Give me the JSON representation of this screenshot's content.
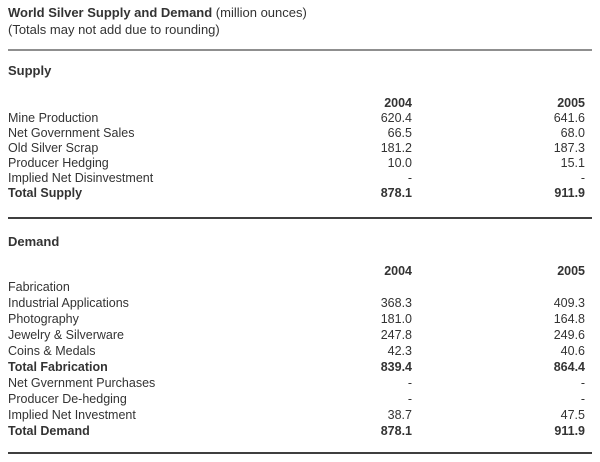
{
  "header": {
    "title": "World Silver Supply and Demand",
    "title_units": " (million ounces)",
    "note": "(Totals may not add due to rounding)"
  },
  "columns": {
    "y2004": "2004",
    "y2005": "2005"
  },
  "supply": {
    "heading": "Supply",
    "rows": [
      {
        "label": "Mine Production",
        "v2004": "620.4",
        "v2005": "641.6"
      },
      {
        "label": "Net Government Sales",
        "v2004": "66.5",
        "v2005": "68.0"
      },
      {
        "label": "Old Silver Scrap",
        "v2004": "181.2",
        "v2005": "187.3"
      },
      {
        "label": "Producer Hedging",
        "v2004": "10.0",
        "v2005": "15.1"
      },
      {
        "label": "Implied Net Disinvestment",
        "v2004": "-",
        "v2005": "-"
      },
      {
        "label": "Total Supply",
        "v2004": "878.1",
        "v2005": "911.9"
      }
    ]
  },
  "demand": {
    "heading": "Demand",
    "rows": [
      {
        "label": "Fabrication",
        "v2004": "",
        "v2005": ""
      },
      {
        "label": "Industrial Applications",
        "v2004": "368.3",
        "v2005": "409.3"
      },
      {
        "label": "Photography",
        "v2004": "181.0",
        "v2005": "164.8"
      },
      {
        "label": "Jewelry & Silverware",
        "v2004": "247.8",
        "v2005": "249.6"
      },
      {
        "label": "Coins & Medals",
        "v2004": "42.3",
        "v2005": "40.6"
      },
      {
        "label": "Total Fabrication",
        "v2004": "839.4",
        "v2005": "864.4"
      },
      {
        "label": "Net Gvernment Purchases",
        "v2004": "-",
        "v2005": "-"
      },
      {
        "label": "Producer De-hedging",
        "v2004": "-",
        "v2005": "-"
      },
      {
        "label": "Implied Net Investment",
        "v2004": "38.7",
        "v2005": "47.5"
      },
      {
        "label": "Total Demand",
        "v2004": "878.1",
        "v2005": "911.9"
      }
    ]
  }
}
